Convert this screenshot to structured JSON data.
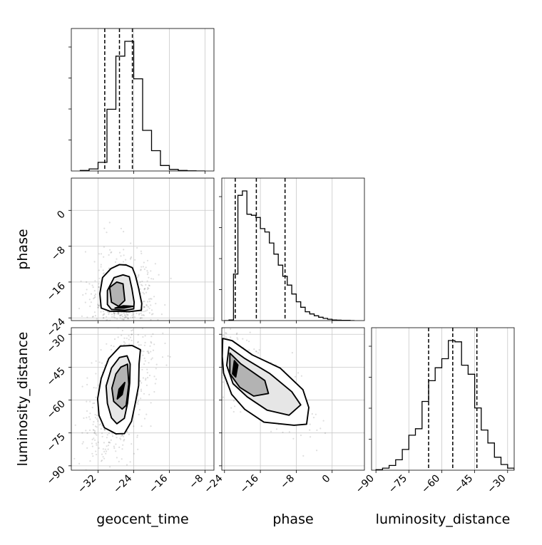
{
  "chart_data": {
    "type": "corner",
    "parameters": [
      "geocent_time",
      "phase",
      "luminosity_distance"
    ],
    "axis_labels": {
      "geocent_time": "geocent_time",
      "phase": "phase",
      "luminosity_distance": "luminosity_distance"
    },
    "ranges": {
      "geocent_time": [
        -38,
        -6
      ],
      "phase": [
        -24.6,
        7.2
      ],
      "luminosity_distance": [
        -92,
        -27
      ]
    },
    "ticks": {
      "geocent_time": [
        -32,
        -24,
        -16,
        -8
      ],
      "phase": [
        -24,
        -16,
        -8,
        0
      ],
      "luminosity_distance": [
        -90,
        -75,
        -60,
        -45,
        -30
      ]
    },
    "tick_labels": {
      "geocent_time": [
        "−32",
        "−24",
        "−16",
        "−8"
      ],
      "phase": [
        "−24",
        "−16",
        "−8",
        "0"
      ],
      "luminosity_distance": [
        "−90",
        "−75",
        "−60",
        "−45",
        "−30"
      ]
    },
    "quantiles": {
      "geocent_time": [
        -30.5,
        -27.2,
        -24.3
      ],
      "phase": [
        -21.6,
        -16.9,
        -10.5
      ],
      "luminosity_distance": [
        -66,
        -55,
        -44
      ]
    },
    "histograms": {
      "geocent_time": {
        "edges": [
          -36,
          -34,
          -32,
          -30,
          -28,
          -26,
          -24,
          -22,
          -20,
          -18,
          -16,
          -14,
          -12,
          -10,
          -8
        ],
        "counts": [
          3,
          13,
          55,
          395,
          735,
          830,
          590,
          260,
          130,
          35,
          10,
          3,
          1,
          0
        ]
      },
      "phase": {
        "edges": [
          -24,
          -23,
          -22,
          -21,
          -20,
          -19,
          -18,
          -17,
          -16,
          -15,
          -14,
          -13,
          -12,
          -11,
          -10,
          -9,
          -8,
          -7,
          -6,
          -5,
          -4,
          -3,
          -2,
          -1,
          0,
          1,
          2,
          3,
          4,
          5
        ],
        "counts": [
          0,
          3,
          210,
          565,
          585,
          480,
          475,
          465,
          415,
          400,
          350,
          300,
          250,
          200,
          160,
          120,
          85,
          60,
          40,
          30,
          22,
          15,
          10,
          6,
          3,
          2,
          1,
          1,
          0
        ]
      },
      "luminosity_distance": {
        "edges": [
          -90,
          -87,
          -84,
          -81,
          -78,
          -75,
          -72,
          -69,
          -66,
          -63,
          -60,
          -57,
          -54,
          -51,
          -48,
          -45,
          -42,
          -39,
          -36,
          -33,
          -30,
          -27
        ],
        "counts": [
          2,
          8,
          18,
          40,
          80,
          135,
          160,
          265,
          345,
          395,
          430,
          500,
          495,
          405,
          370,
          240,
          155,
          105,
          50,
          22,
          8
        ]
      }
    },
    "pairs": [
      {
        "x": "geocent_time",
        "y": "phase",
        "mode": [
          -26.3,
          -21.8
        ],
        "spread_sd": [
          2.2,
          3.4
        ],
        "contours": [
          [
            [
              -25.7,
              -12.2
            ],
            [
              -24.3,
              -12.8
            ],
            [
              -23.6,
              -14.6
            ],
            [
              -22.9,
              -17.4
            ],
            [
              -22.2,
              -20.8
            ],
            [
              -22.3,
              -22.3
            ],
            [
              -25.0,
              -22.6
            ],
            [
              -29.4,
              -22.5
            ],
            [
              -31.3,
              -21.8
            ],
            [
              -31.6,
              -18.6
            ],
            [
              -31.0,
              -15.0
            ],
            [
              -29.1,
              -13.0
            ],
            [
              -27.2,
              -12.1
            ]
          ],
          [
            [
              -26.4,
              -14.4
            ],
            [
              -25.0,
              -14.8
            ],
            [
              -24.4,
              -17.5
            ],
            [
              -23.9,
              -20.5
            ],
            [
              -24.0,
              -22.0
            ],
            [
              -26.0,
              -22.3
            ],
            [
              -29.0,
              -22.1
            ],
            [
              -29.9,
              -21.0
            ],
            [
              -29.9,
              -17.9
            ],
            [
              -28.4,
              -15.0
            ]
          ],
          [
            [
              -27.8,
              -16.0
            ],
            [
              -26.4,
              -16.4
            ],
            [
              -26.0,
              -20.1
            ],
            [
              -27.4,
              -21.4
            ],
            [
              -29.0,
              -20.5
            ],
            [
              -29.4,
              -17.2
            ]
          ],
          [
            [
              -24.1,
              -21.4
            ],
            [
              -26.2,
              -21.8
            ],
            [
              -28.2,
              -21.8
            ],
            [
              -26.3,
              -21.3
            ]
          ]
        ]
      },
      {
        "x": "geocent_time",
        "y": "luminosity_distance",
        "mode": [
          -27.0,
          -57.0
        ],
        "spread_sd": [
          2.4,
          10.0
        ],
        "contours": [
          [
            [
              -24.4,
              -35.1
            ],
            [
              -22.5,
              -37.0
            ],
            [
              -22.8,
              -43.5
            ],
            [
              -22.9,
              -53.4
            ],
            [
              -23.6,
              -61.0
            ],
            [
              -24.5,
              -69.7
            ],
            [
              -26.1,
              -75.3
            ],
            [
              -28.0,
              -75.4
            ],
            [
              -30.6,
              -72.6
            ],
            [
              -31.8,
              -67.0
            ],
            [
              -32.1,
              -59.4
            ],
            [
              -31.3,
              -50.1
            ],
            [
              -29.6,
              -41.1
            ],
            [
              -27.0,
              -35.4
            ]
          ],
          [
            [
              -25.5,
              -39.8
            ],
            [
              -24.8,
              -43.5
            ],
            [
              -24.9,
              -52.2
            ],
            [
              -25.4,
              -61.5
            ],
            [
              -26.1,
              -68.3
            ],
            [
              -27.8,
              -70.8
            ],
            [
              -29.0,
              -68.1
            ],
            [
              -29.9,
              -61.5
            ],
            [
              -30.2,
              -53.6
            ],
            [
              -29.0,
              -45.4
            ],
            [
              -27.2,
              -40.6
            ]
          ],
          [
            [
              -25.4,
              -43.6
            ],
            [
              -25.1,
              -52.7
            ],
            [
              -25.7,
              -62.4
            ],
            [
              -26.6,
              -64.1
            ],
            [
              -28.5,
              -60.6
            ],
            [
              -28.9,
              -54.6
            ],
            [
              -28.0,
              -48.1
            ],
            [
              -26.9,
              -45.0
            ]
          ],
          [
            [
              -26.0,
              -52.0
            ],
            [
              -26.6,
              -57.5
            ],
            [
              -27.7,
              -59.5
            ],
            [
              -27.3,
              -55.0
            ]
          ]
        ]
      },
      {
        "x": "phase",
        "y": "luminosity_distance",
        "mode": [
          -21.5,
          -47.0
        ],
        "spread_sd": [
          4.2,
          8.0
        ],
        "contours": [
          [
            [
              -24.4,
              -31.9
            ],
            [
              -22.3,
              -32.9
            ],
            [
              -17.8,
              -39.4
            ],
            [
              -11.6,
              -45.4
            ],
            [
              -6.5,
              -55.3
            ],
            [
              -5.2,
              -63.4
            ],
            [
              -5.7,
              -71.0
            ],
            [
              -8.5,
              -71.5
            ],
            [
              -15.2,
              -70.1
            ],
            [
              -19.5,
              -64.2
            ],
            [
              -22.4,
              -57.4
            ],
            [
              -24.2,
              -47.7
            ],
            [
              -24.5,
              -40.1
            ]
          ],
          [
            [
              -23.0,
              -35.8
            ],
            [
              -19.5,
              -41.0
            ],
            [
              -13.9,
              -47.9
            ],
            [
              -9.0,
              -56.2
            ],
            [
              -7.0,
              -62.2
            ],
            [
              -9.6,
              -66.9
            ],
            [
              -14.5,
              -64.6
            ],
            [
              -18.9,
              -58.6
            ],
            [
              -22.1,
              -52.5
            ],
            [
              -23.5,
              -44.2
            ]
          ],
          [
            [
              -22.8,
              -38.6
            ],
            [
              -20.4,
              -43.4
            ],
            [
              -15.0,
              -51.1
            ],
            [
              -14.2,
              -57.0
            ],
            [
              -17.5,
              -58.2
            ],
            [
              -20.6,
              -54.2
            ],
            [
              -22.8,
              -48.0
            ]
          ],
          [
            [
              -21.8,
              -42.0
            ],
            [
              -21.0,
              -44.0
            ],
            [
              -21.5,
              -49.5
            ],
            [
              -22.2,
              -48.0
            ]
          ]
        ]
      }
    ]
  }
}
